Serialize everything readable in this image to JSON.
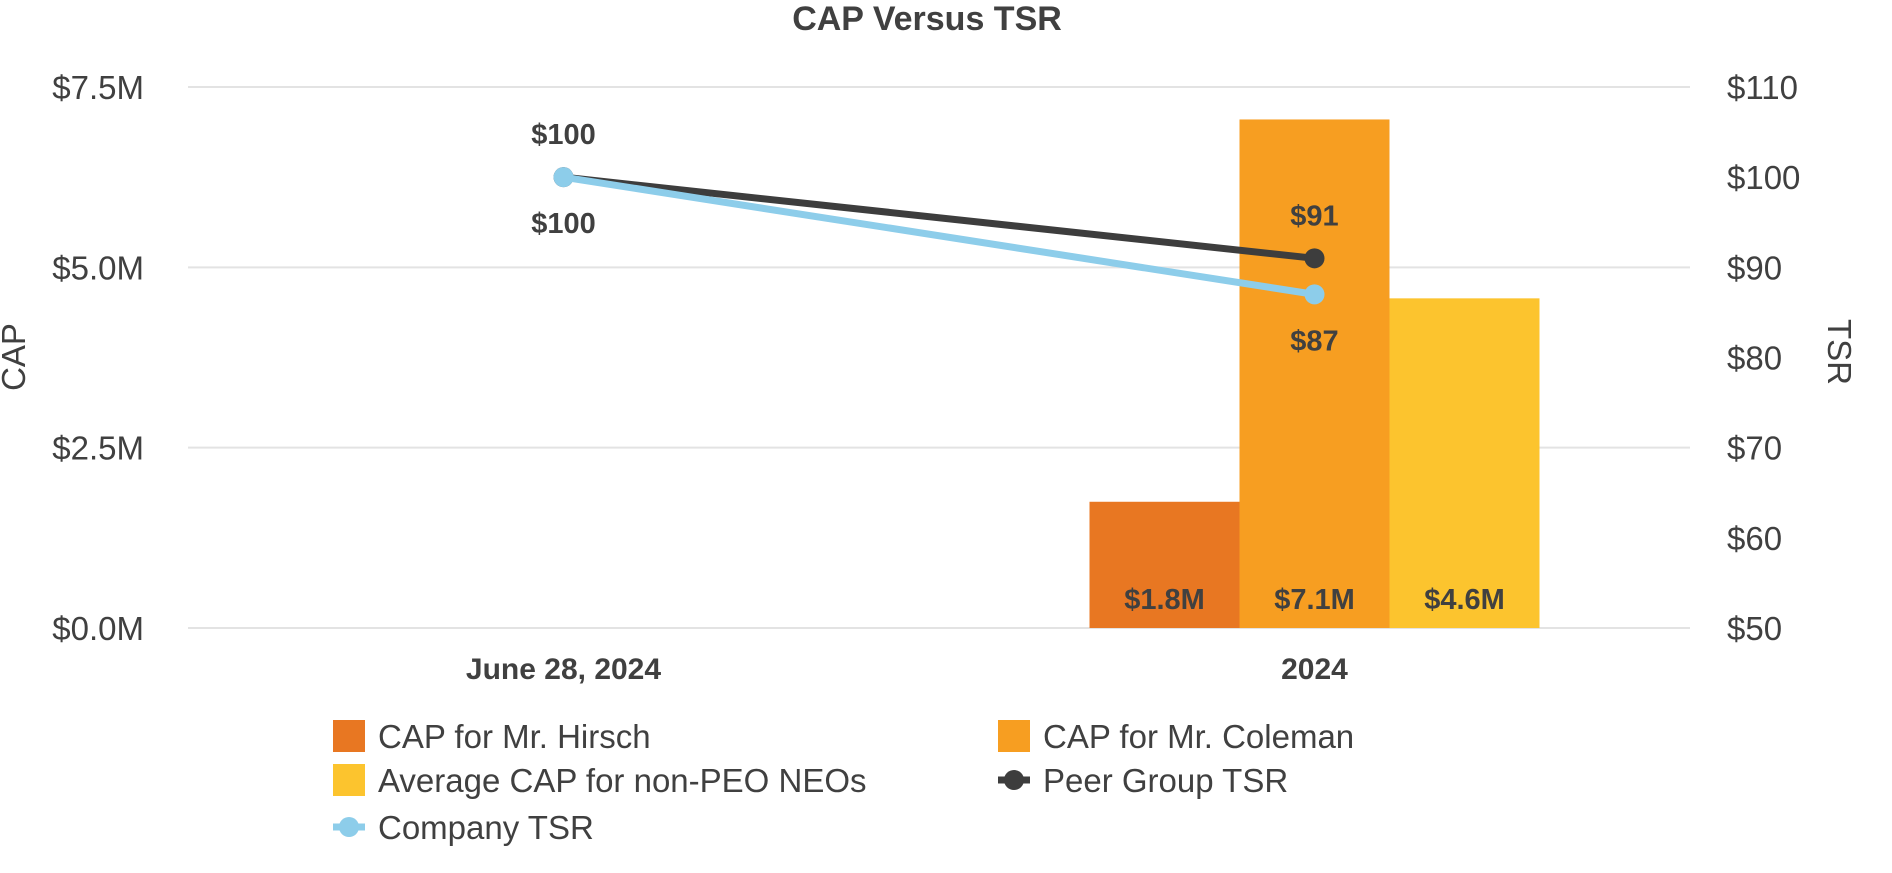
{
  "chart_data": {
    "type": "bar",
    "title": "CAP Versus TSR",
    "categories": [
      "June 28, 2024",
      "2024"
    ],
    "y_left": {
      "label": "CAP",
      "range": [
        0,
        7.5
      ],
      "ticks": [
        0,
        2.5,
        5.0,
        7.5
      ],
      "tick_labels": [
        "$0.0M",
        "$2.5M",
        "$5.0M",
        "$7.5M"
      ]
    },
    "y_right": {
      "label": "TSR",
      "range": [
        50,
        110
      ],
      "ticks": [
        50,
        60,
        70,
        80,
        90,
        100,
        110
      ],
      "tick_labels": [
        "$50",
        "$60",
        "$70",
        "$80",
        "$90",
        "$100",
        "$110"
      ]
    },
    "grid": true,
    "legend_position": "bottom",
    "bar_series": [
      {
        "name": "CAP for Mr. Hirsch",
        "color": "#E87722",
        "values": [
          null,
          1.75
        ],
        "labels": [
          "",
          "$1.8M"
        ]
      },
      {
        "name": "CAP for Mr. Coleman",
        "color": "#F79E21",
        "values": [
          null,
          7.05
        ],
        "labels": [
          "",
          "$7.1M"
        ]
      },
      {
        "name": "Average CAP for non-PEO NEOs",
        "color": "#FCC42E",
        "values": [
          null,
          4.57
        ],
        "labels": [
          "",
          "$4.6M"
        ]
      }
    ],
    "line_series": [
      {
        "name": "Peer Group TSR",
        "color": "#3D3D3D",
        "values": [
          100,
          91
        ],
        "labels": [
          "$100",
          "$91"
        ],
        "label_position": "above"
      },
      {
        "name": "Company TSR",
        "color": "#8DCDEA",
        "values": [
          100,
          87
        ],
        "labels": [
          "$100",
          "$87"
        ],
        "label_position": "below"
      }
    ],
    "legend": [
      {
        "name": "CAP for Mr. Hirsch",
        "kind": "box",
        "color": "#E87722"
      },
      {
        "name": "CAP for Mr. Coleman",
        "kind": "box",
        "color": "#F79E21"
      },
      {
        "name": "Average CAP for non-PEO NEOs",
        "kind": "box",
        "color": "#FCC42E"
      },
      {
        "name": "Peer Group TSR",
        "kind": "line",
        "color": "#3D3D3D"
      },
      {
        "name": "Company TSR",
        "kind": "line",
        "color": "#8DCDEA"
      }
    ]
  }
}
